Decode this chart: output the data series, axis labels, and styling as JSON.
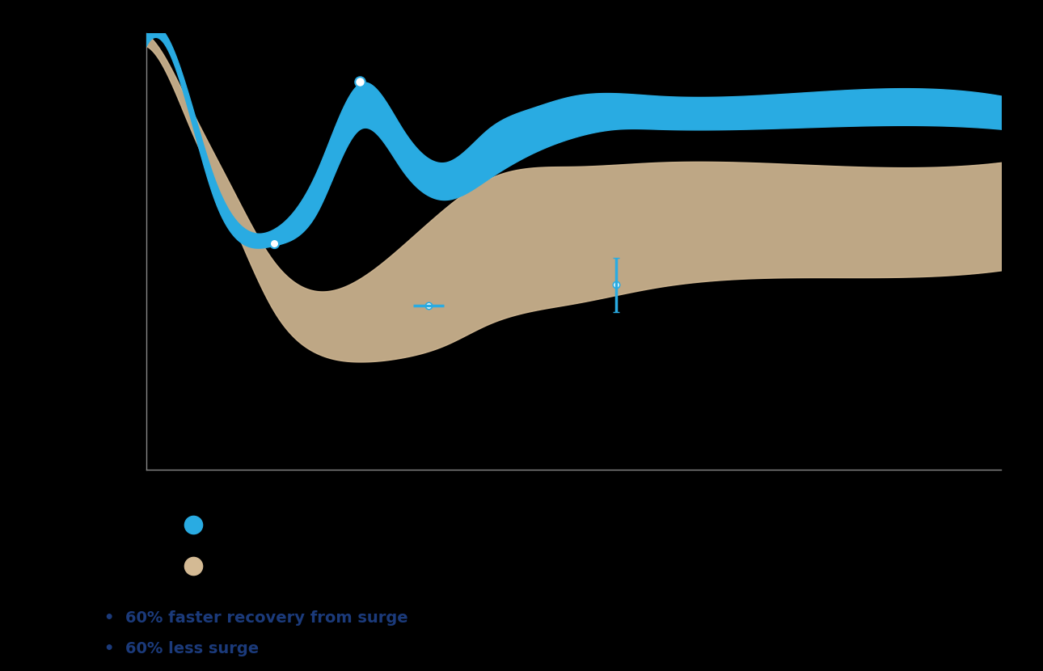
{
  "background_color": "#000000",
  "blue_color": "#29ABE2",
  "tan_color": "#D4BA94",
  "bullet_color": "#1B3A7A",
  "bullet_text": [
    "60% faster recovery from surge",
    "60% less surge"
  ],
  "axis_color": "#888888"
}
